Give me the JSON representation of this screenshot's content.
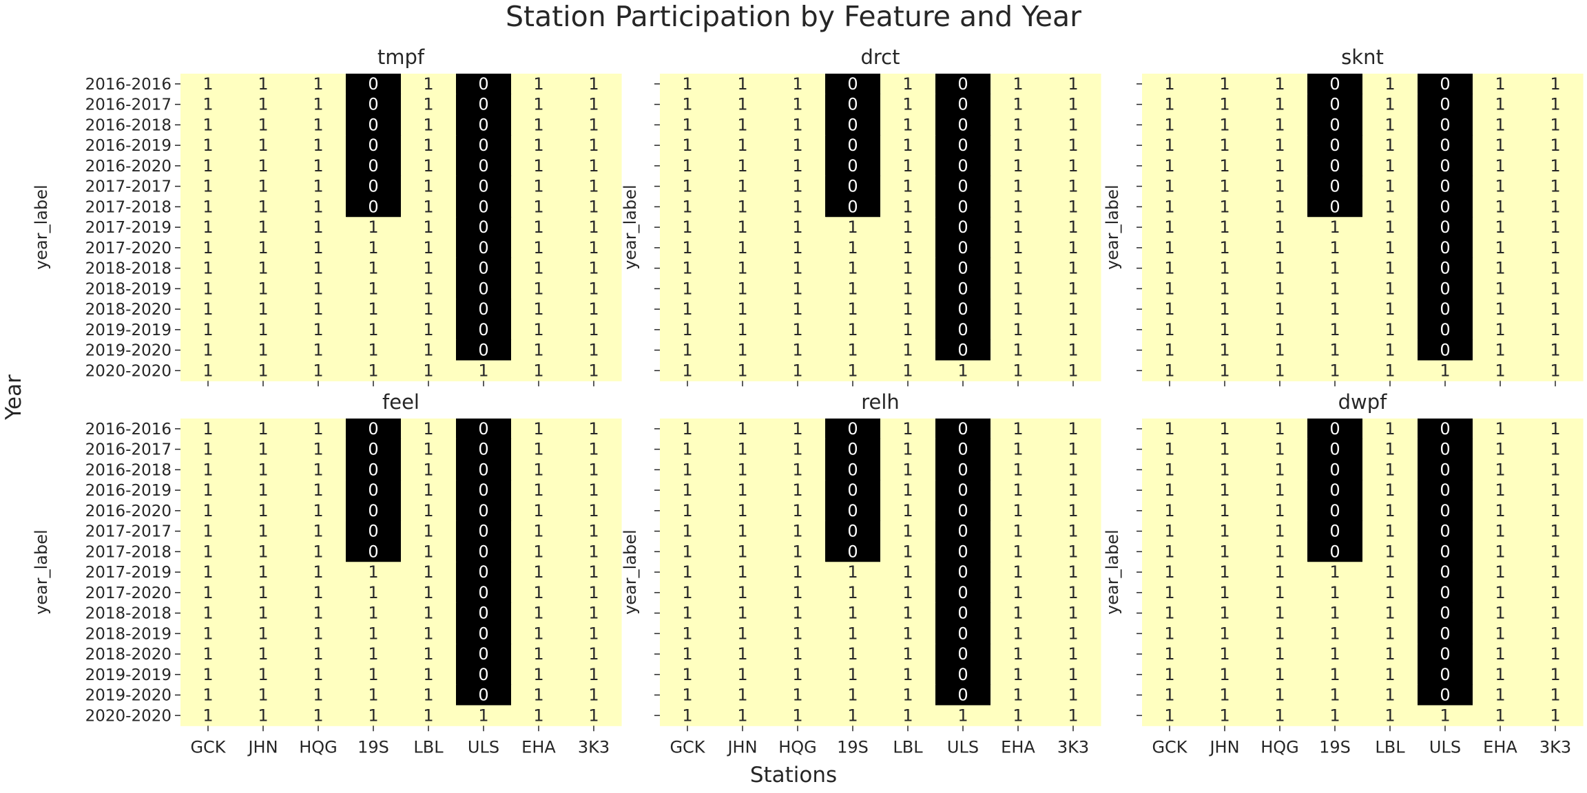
{
  "title": "Station Participation by Feature and Year",
  "shared_xlabel": "Stations",
  "shared_ylabel": "Year",
  "colors": {
    "one": "#ffffc0",
    "zero": "#000000",
    "text_on_one": "#262626",
    "text_on_zero": "#ffffff"
  },
  "chart_data": [
    {
      "type": "heatmap",
      "title": "tmpf",
      "ylabel": "year_label",
      "xlabel": "",
      "x": [
        "GCK",
        "JHN",
        "HQG",
        "19S",
        "LBL",
        "ULS",
        "EHA",
        "3K3"
      ],
      "y": [
        "2016-2016",
        "2016-2017",
        "2016-2018",
        "2016-2019",
        "2016-2020",
        "2017-2017",
        "2017-2018",
        "2017-2019",
        "2017-2020",
        "2018-2018",
        "2018-2019",
        "2018-2020",
        "2019-2019",
        "2019-2020",
        "2020-2020"
      ],
      "values": [
        [
          1,
          1,
          1,
          0,
          1,
          0,
          1,
          1
        ],
        [
          1,
          1,
          1,
          0,
          1,
          0,
          1,
          1
        ],
        [
          1,
          1,
          1,
          0,
          1,
          0,
          1,
          1
        ],
        [
          1,
          1,
          1,
          0,
          1,
          0,
          1,
          1
        ],
        [
          1,
          1,
          1,
          0,
          1,
          0,
          1,
          1
        ],
        [
          1,
          1,
          1,
          0,
          1,
          0,
          1,
          1
        ],
        [
          1,
          1,
          1,
          0,
          1,
          0,
          1,
          1
        ],
        [
          1,
          1,
          1,
          1,
          1,
          0,
          1,
          1
        ],
        [
          1,
          1,
          1,
          1,
          1,
          0,
          1,
          1
        ],
        [
          1,
          1,
          1,
          1,
          1,
          0,
          1,
          1
        ],
        [
          1,
          1,
          1,
          1,
          1,
          0,
          1,
          1
        ],
        [
          1,
          1,
          1,
          1,
          1,
          0,
          1,
          1
        ],
        [
          1,
          1,
          1,
          1,
          1,
          0,
          1,
          1
        ],
        [
          1,
          1,
          1,
          1,
          1,
          0,
          1,
          1
        ],
        [
          1,
          1,
          1,
          1,
          1,
          1,
          1,
          1
        ]
      ]
    },
    {
      "type": "heatmap",
      "title": "drct",
      "ylabel": "year_label",
      "xlabel": "",
      "x": [
        "GCK",
        "JHN",
        "HQG",
        "19S",
        "LBL",
        "ULS",
        "EHA",
        "3K3"
      ],
      "y": [
        "2016-2016",
        "2016-2017",
        "2016-2018",
        "2016-2019",
        "2016-2020",
        "2017-2017",
        "2017-2018",
        "2017-2019",
        "2017-2020",
        "2018-2018",
        "2018-2019",
        "2018-2020",
        "2019-2019",
        "2019-2020",
        "2020-2020"
      ],
      "values": [
        [
          1,
          1,
          1,
          0,
          1,
          0,
          1,
          1
        ],
        [
          1,
          1,
          1,
          0,
          1,
          0,
          1,
          1
        ],
        [
          1,
          1,
          1,
          0,
          1,
          0,
          1,
          1
        ],
        [
          1,
          1,
          1,
          0,
          1,
          0,
          1,
          1
        ],
        [
          1,
          1,
          1,
          0,
          1,
          0,
          1,
          1
        ],
        [
          1,
          1,
          1,
          0,
          1,
          0,
          1,
          1
        ],
        [
          1,
          1,
          1,
          0,
          1,
          0,
          1,
          1
        ],
        [
          1,
          1,
          1,
          1,
          1,
          0,
          1,
          1
        ],
        [
          1,
          1,
          1,
          1,
          1,
          0,
          1,
          1
        ],
        [
          1,
          1,
          1,
          1,
          1,
          0,
          1,
          1
        ],
        [
          1,
          1,
          1,
          1,
          1,
          0,
          1,
          1
        ],
        [
          1,
          1,
          1,
          1,
          1,
          0,
          1,
          1
        ],
        [
          1,
          1,
          1,
          1,
          1,
          0,
          1,
          1
        ],
        [
          1,
          1,
          1,
          1,
          1,
          0,
          1,
          1
        ],
        [
          1,
          1,
          1,
          1,
          1,
          1,
          1,
          1
        ]
      ]
    },
    {
      "type": "heatmap",
      "title": "sknt",
      "ylabel": "year_label",
      "xlabel": "",
      "x": [
        "GCK",
        "JHN",
        "HQG",
        "19S",
        "LBL",
        "ULS",
        "EHA",
        "3K3"
      ],
      "y": [
        "2016-2016",
        "2016-2017",
        "2016-2018",
        "2016-2019",
        "2016-2020",
        "2017-2017",
        "2017-2018",
        "2017-2019",
        "2017-2020",
        "2018-2018",
        "2018-2019",
        "2018-2020",
        "2019-2019",
        "2019-2020",
        "2020-2020"
      ],
      "values": [
        [
          1,
          1,
          1,
          0,
          1,
          0,
          1,
          1
        ],
        [
          1,
          1,
          1,
          0,
          1,
          0,
          1,
          1
        ],
        [
          1,
          1,
          1,
          0,
          1,
          0,
          1,
          1
        ],
        [
          1,
          1,
          1,
          0,
          1,
          0,
          1,
          1
        ],
        [
          1,
          1,
          1,
          0,
          1,
          0,
          1,
          1
        ],
        [
          1,
          1,
          1,
          0,
          1,
          0,
          1,
          1
        ],
        [
          1,
          1,
          1,
          0,
          1,
          0,
          1,
          1
        ],
        [
          1,
          1,
          1,
          1,
          1,
          0,
          1,
          1
        ],
        [
          1,
          1,
          1,
          1,
          1,
          0,
          1,
          1
        ],
        [
          1,
          1,
          1,
          1,
          1,
          0,
          1,
          1
        ],
        [
          1,
          1,
          1,
          1,
          1,
          0,
          1,
          1
        ],
        [
          1,
          1,
          1,
          1,
          1,
          0,
          1,
          1
        ],
        [
          1,
          1,
          1,
          1,
          1,
          0,
          1,
          1
        ],
        [
          1,
          1,
          1,
          1,
          1,
          0,
          1,
          1
        ],
        [
          1,
          1,
          1,
          1,
          1,
          1,
          1,
          1
        ]
      ]
    },
    {
      "type": "heatmap",
      "title": "feel",
      "ylabel": "year_label",
      "xlabel": "",
      "x": [
        "GCK",
        "JHN",
        "HQG",
        "19S",
        "LBL",
        "ULS",
        "EHA",
        "3K3"
      ],
      "y": [
        "2016-2016",
        "2016-2017",
        "2016-2018",
        "2016-2019",
        "2016-2020",
        "2017-2017",
        "2017-2018",
        "2017-2019",
        "2017-2020",
        "2018-2018",
        "2018-2019",
        "2018-2020",
        "2019-2019",
        "2019-2020",
        "2020-2020"
      ],
      "values": [
        [
          1,
          1,
          1,
          0,
          1,
          0,
          1,
          1
        ],
        [
          1,
          1,
          1,
          0,
          1,
          0,
          1,
          1
        ],
        [
          1,
          1,
          1,
          0,
          1,
          0,
          1,
          1
        ],
        [
          1,
          1,
          1,
          0,
          1,
          0,
          1,
          1
        ],
        [
          1,
          1,
          1,
          0,
          1,
          0,
          1,
          1
        ],
        [
          1,
          1,
          1,
          0,
          1,
          0,
          1,
          1
        ],
        [
          1,
          1,
          1,
          0,
          1,
          0,
          1,
          1
        ],
        [
          1,
          1,
          1,
          1,
          1,
          0,
          1,
          1
        ],
        [
          1,
          1,
          1,
          1,
          1,
          0,
          1,
          1
        ],
        [
          1,
          1,
          1,
          1,
          1,
          0,
          1,
          1
        ],
        [
          1,
          1,
          1,
          1,
          1,
          0,
          1,
          1
        ],
        [
          1,
          1,
          1,
          1,
          1,
          0,
          1,
          1
        ],
        [
          1,
          1,
          1,
          1,
          1,
          0,
          1,
          1
        ],
        [
          1,
          1,
          1,
          1,
          1,
          0,
          1,
          1
        ],
        [
          1,
          1,
          1,
          1,
          1,
          1,
          1,
          1
        ]
      ]
    },
    {
      "type": "heatmap",
      "title": "relh",
      "ylabel": "year_label",
      "xlabel": "",
      "x": [
        "GCK",
        "JHN",
        "HQG",
        "19S",
        "LBL",
        "ULS",
        "EHA",
        "3K3"
      ],
      "y": [
        "2016-2016",
        "2016-2017",
        "2016-2018",
        "2016-2019",
        "2016-2020",
        "2017-2017",
        "2017-2018",
        "2017-2019",
        "2017-2020",
        "2018-2018",
        "2018-2019",
        "2018-2020",
        "2019-2019",
        "2019-2020",
        "2020-2020"
      ],
      "values": [
        [
          1,
          1,
          1,
          0,
          1,
          0,
          1,
          1
        ],
        [
          1,
          1,
          1,
          0,
          1,
          0,
          1,
          1
        ],
        [
          1,
          1,
          1,
          0,
          1,
          0,
          1,
          1
        ],
        [
          1,
          1,
          1,
          0,
          1,
          0,
          1,
          1
        ],
        [
          1,
          1,
          1,
          0,
          1,
          0,
          1,
          1
        ],
        [
          1,
          1,
          1,
          0,
          1,
          0,
          1,
          1
        ],
        [
          1,
          1,
          1,
          0,
          1,
          0,
          1,
          1
        ],
        [
          1,
          1,
          1,
          1,
          1,
          0,
          1,
          1
        ],
        [
          1,
          1,
          1,
          1,
          1,
          0,
          1,
          1
        ],
        [
          1,
          1,
          1,
          1,
          1,
          0,
          1,
          1
        ],
        [
          1,
          1,
          1,
          1,
          1,
          0,
          1,
          1
        ],
        [
          1,
          1,
          1,
          1,
          1,
          0,
          1,
          1
        ],
        [
          1,
          1,
          1,
          1,
          1,
          0,
          1,
          1
        ],
        [
          1,
          1,
          1,
          1,
          1,
          0,
          1,
          1
        ],
        [
          1,
          1,
          1,
          1,
          1,
          1,
          1,
          1
        ]
      ]
    },
    {
      "type": "heatmap",
      "title": "dwpf",
      "ylabel": "year_label",
      "xlabel": "",
      "x": [
        "GCK",
        "JHN",
        "HQG",
        "19S",
        "LBL",
        "ULS",
        "EHA",
        "3K3"
      ],
      "y": [
        "2016-2016",
        "2016-2017",
        "2016-2018",
        "2016-2019",
        "2016-2020",
        "2017-2017",
        "2017-2018",
        "2017-2019",
        "2017-2020",
        "2018-2018",
        "2018-2019",
        "2018-2020",
        "2019-2019",
        "2019-2020",
        "2020-2020"
      ],
      "values": [
        [
          1,
          1,
          1,
          0,
          1,
          0,
          1,
          1
        ],
        [
          1,
          1,
          1,
          0,
          1,
          0,
          1,
          1
        ],
        [
          1,
          1,
          1,
          0,
          1,
          0,
          1,
          1
        ],
        [
          1,
          1,
          1,
          0,
          1,
          0,
          1,
          1
        ],
        [
          1,
          1,
          1,
          0,
          1,
          0,
          1,
          1
        ],
        [
          1,
          1,
          1,
          0,
          1,
          0,
          1,
          1
        ],
        [
          1,
          1,
          1,
          0,
          1,
          0,
          1,
          1
        ],
        [
          1,
          1,
          1,
          1,
          1,
          0,
          1,
          1
        ],
        [
          1,
          1,
          1,
          1,
          1,
          0,
          1,
          1
        ],
        [
          1,
          1,
          1,
          1,
          1,
          0,
          1,
          1
        ],
        [
          1,
          1,
          1,
          1,
          1,
          0,
          1,
          1
        ],
        [
          1,
          1,
          1,
          1,
          1,
          0,
          1,
          1
        ],
        [
          1,
          1,
          1,
          1,
          1,
          0,
          1,
          1
        ],
        [
          1,
          1,
          1,
          1,
          1,
          0,
          1,
          1
        ],
        [
          1,
          1,
          1,
          1,
          1,
          1,
          1,
          1
        ]
      ]
    }
  ]
}
